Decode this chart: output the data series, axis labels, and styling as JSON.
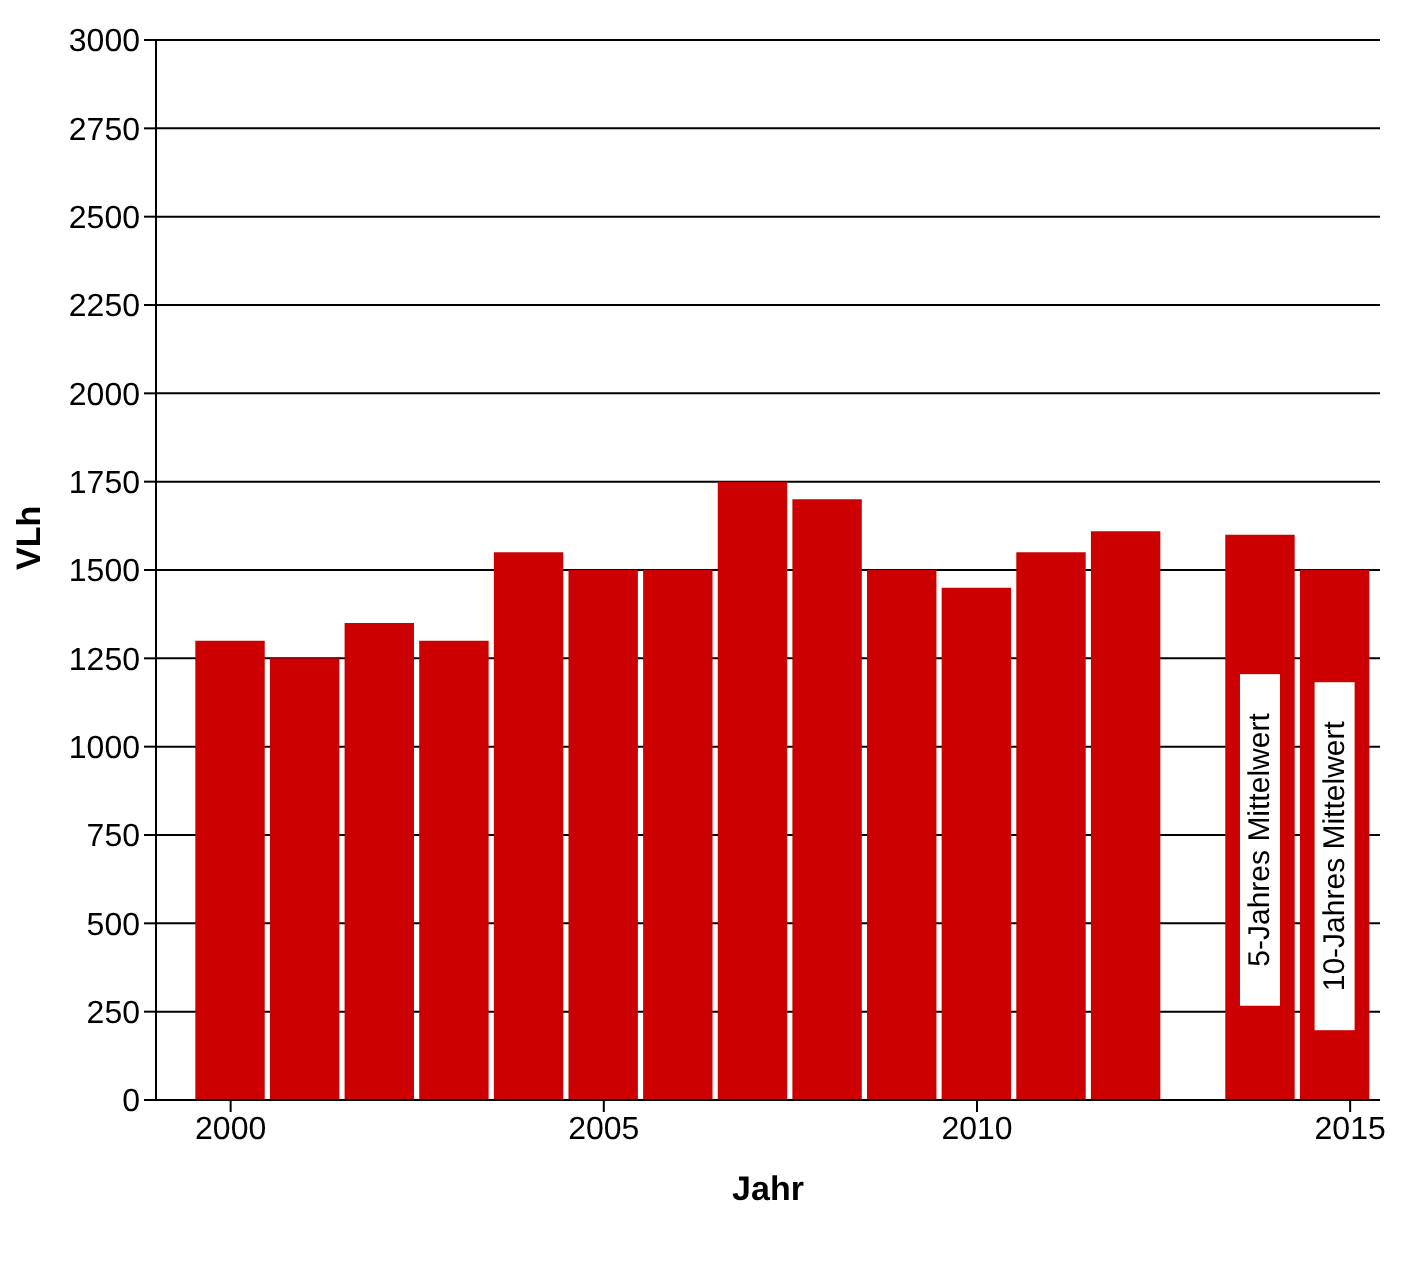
{
  "chart_data": {
    "type": "bar",
    "xlabel": "Jahr",
    "ylabel": "VLh",
    "x": [
      2000,
      2001,
      2002,
      2003,
      2004,
      2005,
      2006,
      2007,
      2008,
      2009,
      2010,
      2011,
      2012,
      2013.8,
      2014.8
    ],
    "series": [
      {
        "color": "#cc0000",
        "values": [
          1300,
          1250,
          1350,
          1300,
          1550,
          1500,
          1500,
          1750,
          1700,
          1500,
          1450,
          1550,
          1610,
          1600,
          1500
        ]
      }
    ],
    "xlim": [
      1999,
      2015.4
    ],
    "xticks": [
      2000,
      2005,
      2010,
      2015
    ],
    "ylim": [
      0,
      3000
    ],
    "yticks": [
      0,
      250,
      500,
      750,
      1000,
      1250,
      1500,
      1750,
      2000,
      2250,
      2500,
      2750,
      3000
    ],
    "grid": "y",
    "annotations": [
      "5-Jahres Mittelwert",
      "10-Jahres Mittelwert"
    ]
  }
}
